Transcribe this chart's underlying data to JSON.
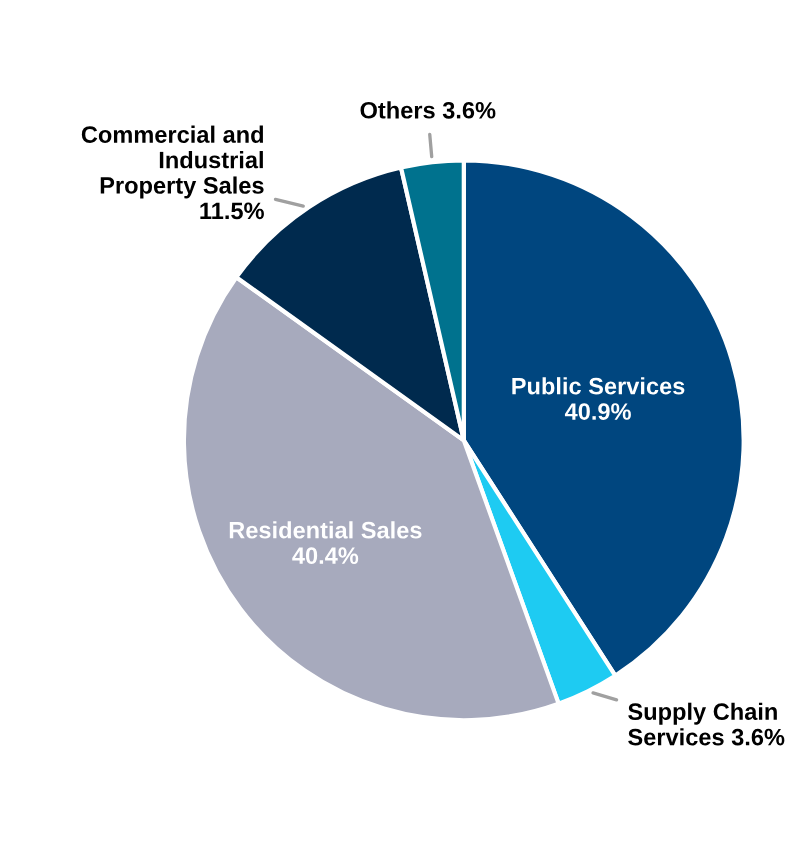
{
  "chart_data": {
    "type": "pie",
    "categories": [
      "Public Services",
      "Supply Chain Services",
      "Residential Sales",
      "Commercial and Industrial Property Sales",
      "Others"
    ],
    "values": [
      40.9,
      3.6,
      40.4,
      11.5,
      3.6
    ],
    "colors": [
      "#00467f",
      "#1ecbf2",
      "#a7aabd",
      "#002a4e",
      "#00728e"
    ],
    "value_labels": [
      "40.9%",
      "3.6%",
      "40.4%",
      "11.5%",
      "3.6%"
    ]
  }
}
